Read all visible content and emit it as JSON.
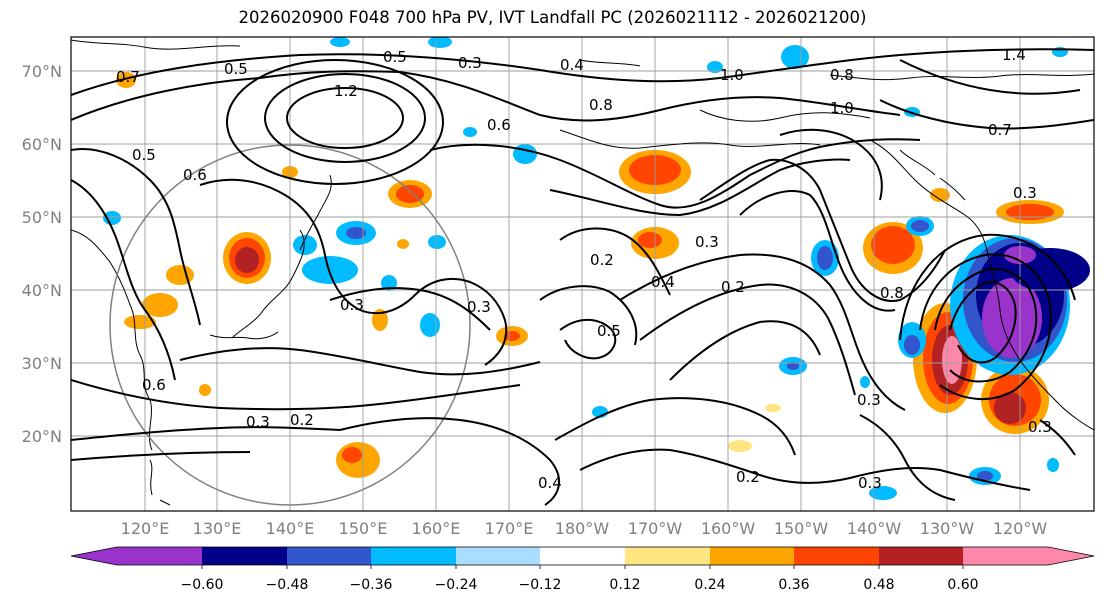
{
  "title": "2026020900 F048 700 hPa PV, IVT Landfall PC (2026021112 - 2026021200)",
  "lat_labels": [
    "70°N",
    "60°N",
    "50°N",
    "40°N",
    "30°N",
    "20°N"
  ],
  "lon_labels": [
    "120°E",
    "130°E",
    "140°E",
    "150°E",
    "160°E",
    "170°E",
    "180°W",
    "170°W",
    "160°W",
    "150°W",
    "140°W",
    "130°W",
    "120°W"
  ],
  "colorbar": {
    "colors": [
      "#9933cc",
      "#000088",
      "#3355cc",
      "#00bbff",
      "#aaddff",
      "#ffffff",
      "#ffe680",
      "#ffa500",
      "#ff4500",
      "#b22222",
      "#ff88aa"
    ],
    "tick_labels": [
      "−0.60",
      "−0.48",
      "−0.36",
      "−0.24",
      "−0.12",
      "0.12",
      "0.24",
      "0.36",
      "0.48",
      "0.60"
    ]
  },
  "contour_labels": [
    "0.5",
    "0.3",
    "1.2",
    "0.6",
    "0.8",
    "1.0",
    "0.2",
    "0.4",
    "0.3",
    "0.5",
    "0.3",
    "0.2",
    "0.4",
    "0.2",
    "0.3",
    "0.8",
    "1.0",
    "0.7",
    "0.3",
    "0.6",
    "0.5",
    "0.3",
    "0.3",
    "0.2",
    "0.4",
    "0.3",
    "0.3",
    "1.4",
    "0.7",
    "0.5",
    "0.8",
    "0.6"
  ]
}
